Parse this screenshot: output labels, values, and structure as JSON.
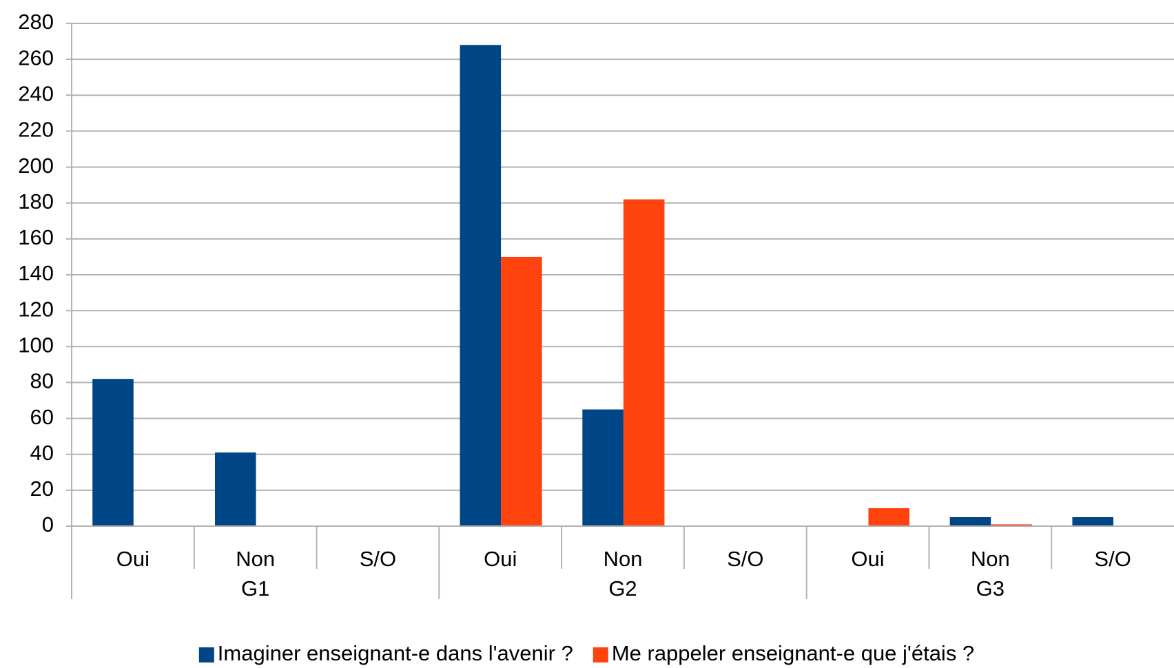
{
  "chart_data": {
    "type": "bar",
    "categories": [
      "Oui",
      "Non",
      "S/O",
      "Oui",
      "Non",
      "S/O",
      "Oui",
      "Non",
      "S/O"
    ],
    "groups": [
      "G1",
      "G2",
      "G3"
    ],
    "series": [
      {
        "name": "Imaginer enseignant-e dans l'avenir ?",
        "color": "#004586",
        "values": [
          82,
          41,
          0,
          268,
          65,
          0,
          0,
          5,
          5
        ]
      },
      {
        "name": "Me rappeler enseignant-e que j'étais ?",
        "color": "#ff420e",
        "values": [
          0,
          0,
          0,
          150,
          182,
          0,
          10,
          1,
          0
        ]
      }
    ],
    "ylim": [
      0,
      280
    ],
    "yticks": [
      0,
      20,
      40,
      60,
      80,
      100,
      120,
      140,
      160,
      180,
      200,
      220,
      240,
      260,
      280
    ],
    "grid": true,
    "legend": "bottom"
  }
}
